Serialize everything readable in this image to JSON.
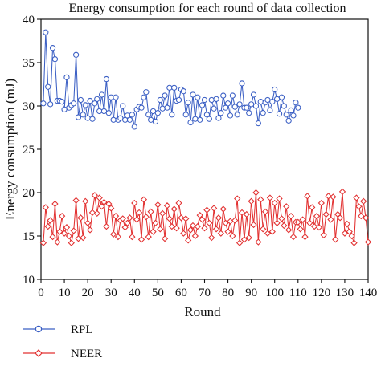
{
  "chart_data": {
    "type": "line",
    "title": "Energy consumption for each round of data collection",
    "xlabel": "Round",
    "ylabel": "Energy consumption (mJ)",
    "xlim": [
      0,
      140
    ],
    "ylim": [
      10,
      40
    ],
    "xticks": [
      "0",
      "10",
      "20",
      "30",
      "40",
      "50",
      "60",
      "70",
      "80",
      "90",
      "100",
      "110",
      "120",
      "130",
      "140"
    ],
    "yticks": [
      "10",
      "15",
      "20",
      "25",
      "30",
      "35",
      "40"
    ],
    "grid": false,
    "legend_position": "bottom-left",
    "series": [
      {
        "name": "RPL",
        "color": "#3b5fc4",
        "marker": "circle",
        "x_start": 1,
        "values": [
          30.3,
          38.5,
          32.2,
          30.2,
          36.7,
          35.4,
          30.6,
          30.6,
          30.5,
          29.6,
          33.3,
          29.8,
          30.1,
          30.3,
          35.9,
          28.7,
          30.7,
          29.0,
          30.1,
          28.6,
          30.6,
          28.5,
          30.3,
          30.8,
          29.4,
          31.3,
          29.4,
          33.1,
          29.2,
          31.0,
          28.4,
          31.0,
          28.4,
          28.6,
          30.0,
          28.4,
          28.9,
          28.4,
          29.0,
          27.6,
          29.6,
          29.9,
          29.8,
          31.0,
          31.6,
          29.0,
          28.4,
          29.4,
          28.2,
          29.2,
          30.7,
          29.7,
          31.2,
          29.8,
          32.1,
          29.0,
          32.1,
          30.6,
          30.7,
          31.9,
          31.7,
          29.0,
          30.4,
          28.1,
          31.3,
          28.5,
          31.0,
          28.4,
          30.1,
          30.7,
          29.0,
          28.5,
          30.7,
          29.7,
          30.8,
          28.6,
          29.2,
          31.2,
          29.8,
          30.3,
          28.9,
          31.2,
          29.9,
          29.0,
          30.2,
          32.6,
          29.8,
          29.8,
          29.2,
          30.2,
          31.3,
          30.0,
          28.0,
          30.5,
          29.2,
          30.4,
          30.7,
          29.5,
          30.5,
          31.9,
          30.8,
          29.1,
          31.0,
          30.0,
          29.0,
          28.3,
          29.5,
          28.9,
          30.4,
          29.8
        ]
      },
      {
        "name": "NEER",
        "color": "#e23030",
        "marker": "diamond",
        "x_start": 1,
        "values": [
          14.2,
          18.3,
          16.1,
          16.8,
          14.9,
          18.7,
          14.3,
          15.5,
          17.3,
          15.3,
          16.0,
          15.0,
          14.2,
          15.6,
          19.1,
          14.7,
          17.1,
          14.8,
          19.0,
          16.5,
          15.7,
          17.7,
          19.7,
          17.6,
          19.4,
          18.4,
          18.9,
          16.1,
          18.7,
          18.2,
          15.2,
          17.3,
          14.9,
          16.8,
          17.0,
          16.0,
          16.5,
          17.1,
          14.9,
          18.8,
          16.9,
          17.7,
          14.6,
          19.2,
          17.2,
          14.9,
          17.8,
          15.5,
          16.5,
          18.6,
          15.8,
          17.6,
          14.7,
          18.5,
          17.0,
          16.1,
          18.1,
          15.9,
          18.8,
          17.1,
          15.3,
          17.0,
          14.5,
          15.7,
          16.2,
          15.0,
          16.1,
          17.4,
          16.9,
          15.9,
          18.0,
          16.5,
          14.8,
          18.2,
          15.8,
          17.1,
          15.3,
          18.1,
          16.5,
          15.5,
          16.7,
          15.0,
          16.8,
          19.3,
          14.2,
          17.7,
          14.6,
          17.5,
          14.8,
          19.0,
          16.3,
          20.0,
          14.3,
          19.2,
          15.8,
          17.8,
          15.3,
          19.4,
          15.5,
          18.8,
          16.5,
          19.3,
          17.0,
          16.2,
          18.4,
          15.7,
          17.3,
          14.9,
          16.6,
          16.6,
          15.8,
          16.9,
          14.9,
          19.6,
          16.5,
          18.3,
          16.1,
          17.3,
          16.0,
          18.8,
          15.1,
          17.5,
          19.6,
          16.9,
          19.5,
          14.6,
          17.5,
          17.1,
          20.1,
          15.3,
          16.4,
          15.5,
          15.0,
          14.2,
          19.4,
          18.4,
          17.3,
          19.0,
          17.1,
          14.3
        ]
      }
    ]
  }
}
